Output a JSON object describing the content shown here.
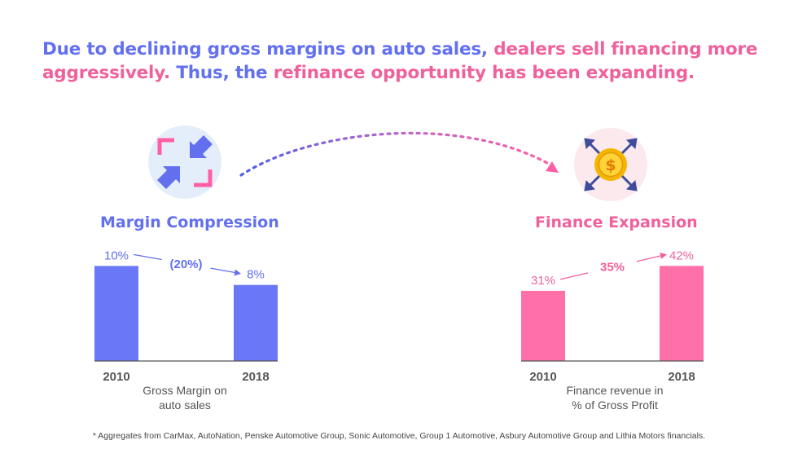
{
  "headline": {
    "part1": "Due to declining gross margins on auto sales, ",
    "part2": "dealers sell financing more aggressively. ",
    "part3": "Thus, the ",
    "part4": "refinance opportunity has been expanding."
  },
  "colors": {
    "blue": "#6270f0",
    "bar_blue": "#6a78f7",
    "pink": "#f0609c",
    "bar_pink": "#ff6fa8"
  },
  "icons": {
    "left": "compress-arrows-icon",
    "right": "dollar-coin-expand-icon"
  },
  "chart_data": [
    {
      "type": "bar",
      "title": "Margin Compression",
      "categories": [
        "2010",
        "2018"
      ],
      "values": [
        10,
        8
      ],
      "value_labels": [
        "10%",
        "8%"
      ],
      "change_label": "(20%)",
      "caption_lines": [
        "Gross Margin on",
        "auto sales"
      ],
      "ylim": [
        0,
        12
      ]
    },
    {
      "type": "bar",
      "title": "Finance Expansion",
      "categories": [
        "2010",
        "2018"
      ],
      "values": [
        31,
        42
      ],
      "value_labels": [
        "31%",
        "42%"
      ],
      "change_label": "35%",
      "caption_lines": [
        "Finance revenue in",
        "% of Gross Profit"
      ],
      "ylim": [
        0,
        50.4
      ]
    }
  ],
  "footnote": "* Aggregates from CarMax, AutoNation, Penske Automotive Group, Sonic Automotive, Group 1 Automotive, Asbury Automotive Group and Lithia Motors financials."
}
